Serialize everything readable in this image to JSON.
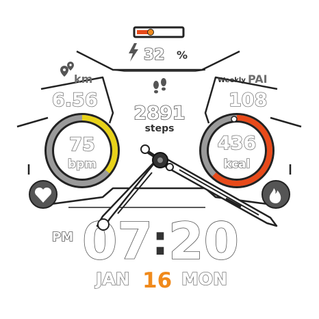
{
  "battery": {
    "percent_text": "32",
    "percent_sign": "%",
    "level": 0.32
  },
  "distance": {
    "unit": "km",
    "value": "6.56"
  },
  "steps": {
    "value": "2891",
    "label": "steps"
  },
  "pai": {
    "label_small": "Weekly",
    "label": "PAI",
    "value": "108"
  },
  "heart_rate": {
    "value": "75",
    "unit": "bpm",
    "level": 0.36
  },
  "calories": {
    "value": "436",
    "unit": "kcal",
    "level": 0.62
  },
  "time": {
    "ampm": "PM",
    "hours": "07",
    "minutes": "20",
    "colon": ":"
  },
  "date": {
    "month": "JAN",
    "day": "16",
    "weekday": "MON"
  },
  "colors": {
    "accent": "#f08a1c",
    "heart_arc": "#e8d21a",
    "cal_arc": "#e84a1a",
    "battery_fill": "#e84a1a",
    "track": "#8a8a8a"
  },
  "icons": {
    "battery": "lightning-icon",
    "distance": "location-pin-icon",
    "steps": "footprints-icon",
    "heart": "heart-icon",
    "calories": "flame-icon"
  }
}
